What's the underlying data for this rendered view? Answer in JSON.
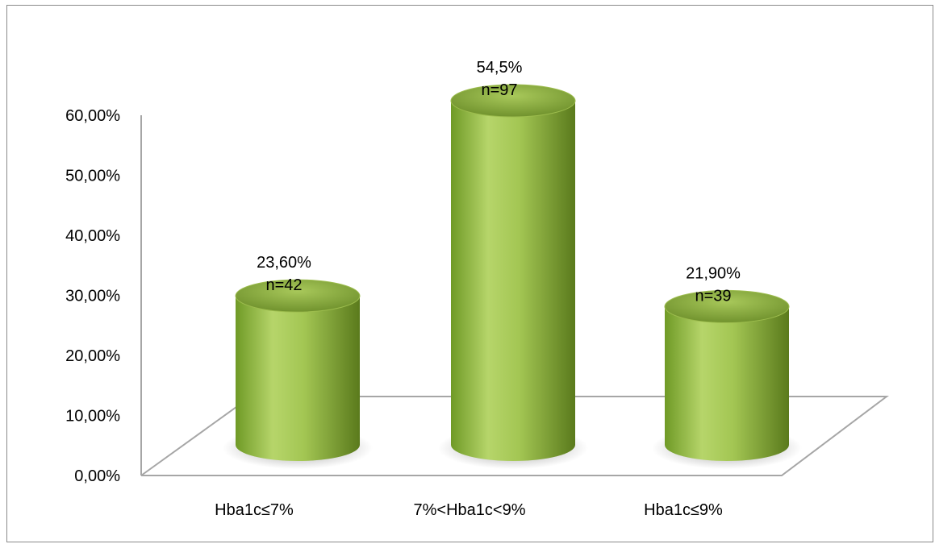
{
  "chart_data": {
    "type": "bar",
    "style": "3d-cylinder",
    "categories": [
      "Hba1c≤7%",
      "7%<Hba1c<9%",
      "Hba1c≤9%"
    ],
    "series": [
      {
        "values": [
          23.6,
          54.5,
          21.9
        ],
        "labels": [
          [
            "23,60%",
            "n=42"
          ],
          [
            "54,5%",
            "n=97"
          ],
          [
            "21,90%",
            "n=39"
          ]
        ]
      }
    ],
    "y_ticks": [
      "0,00%",
      "10,00%",
      "20,00%",
      "30,00%",
      "40,00%",
      "50,00%",
      "60,00%"
    ],
    "ylim": [
      0,
      60
    ],
    "title": "",
    "xlabel": "",
    "ylabel": "",
    "grid": false,
    "legend": "none",
    "colors": {
      "bar_light": "#b6d56a",
      "bar_mid": "#8fb23f",
      "bar_dark": "#5a7a1c",
      "top_light": "#a8c85a",
      "top_dark": "#6c8e2a",
      "axis": "#a6a6a6"
    }
  }
}
